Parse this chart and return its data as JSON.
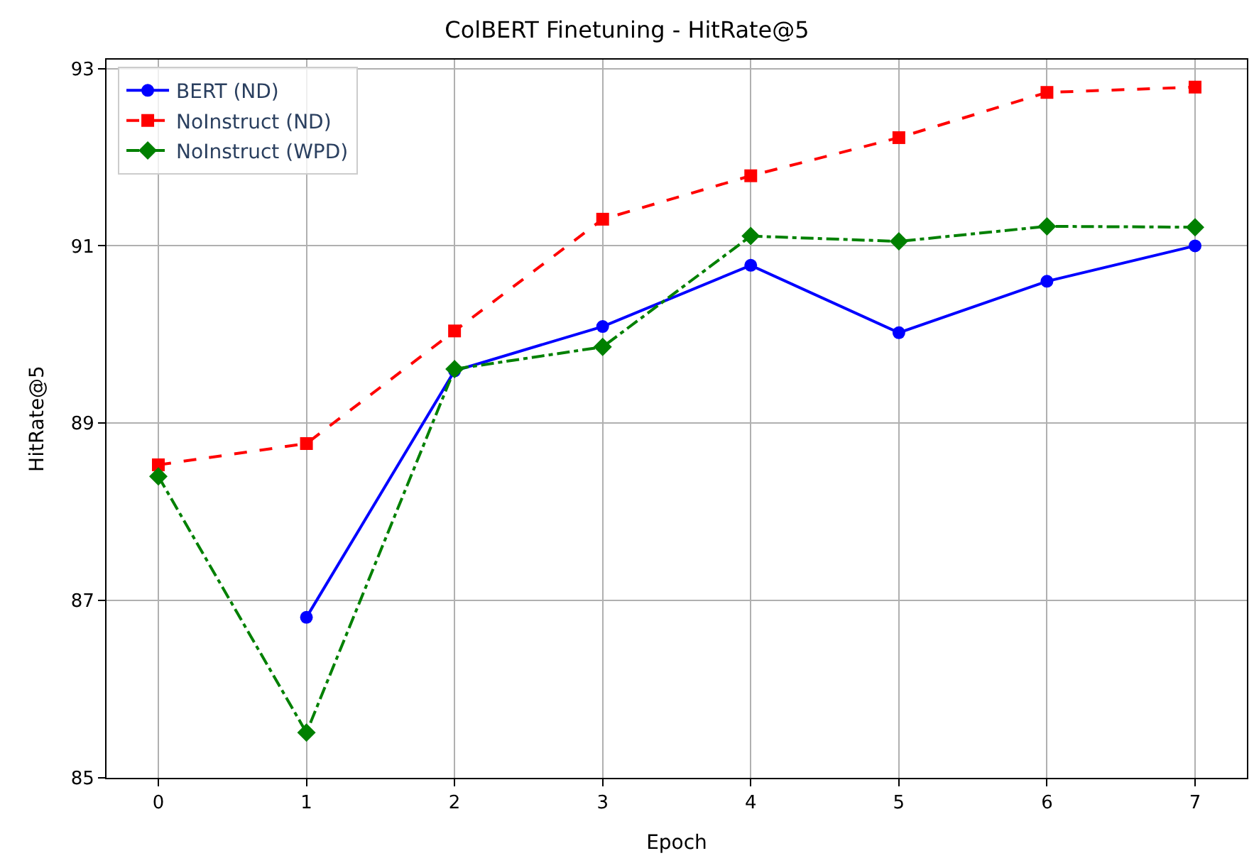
{
  "chart_data": {
    "type": "line",
    "title": "ColBERT Finetuning - HitRate@5",
    "xlabel": "Epoch",
    "ylabel": "HitRate@5",
    "x": [
      0,
      1,
      2,
      3,
      4,
      5,
      6,
      7
    ],
    "series": [
      {
        "name": "BERT (ND)",
        "color": "#0000ff",
        "marker": "circle",
        "line_style": "solid",
        "values": [
          null,
          86.81,
          89.59,
          90.09,
          90.78,
          90.02,
          90.6,
          91.0
        ]
      },
      {
        "name": "NoInstruct (ND)",
        "color": "#ff0000",
        "marker": "square",
        "line_style": "dashed",
        "values": [
          88.53,
          88.77,
          90.04,
          91.3,
          91.79,
          92.22,
          92.73,
          92.79
        ]
      },
      {
        "name": "NoInstruct (WPD)",
        "color": "#008000",
        "marker": "diamond",
        "line_style": "dashdot",
        "values": [
          88.4,
          85.51,
          89.61,
          89.86,
          91.11,
          91.05,
          91.22,
          91.21
        ]
      }
    ],
    "xlim": [
      -0.35,
      7.35
    ],
    "xticks": [
      0,
      1,
      2,
      3,
      4,
      5,
      6,
      7
    ],
    "ylim": [
      85,
      93.1
    ],
    "yticks": [
      85,
      87,
      89,
      91,
      93
    ],
    "grid": true,
    "legend": "top left"
  }
}
